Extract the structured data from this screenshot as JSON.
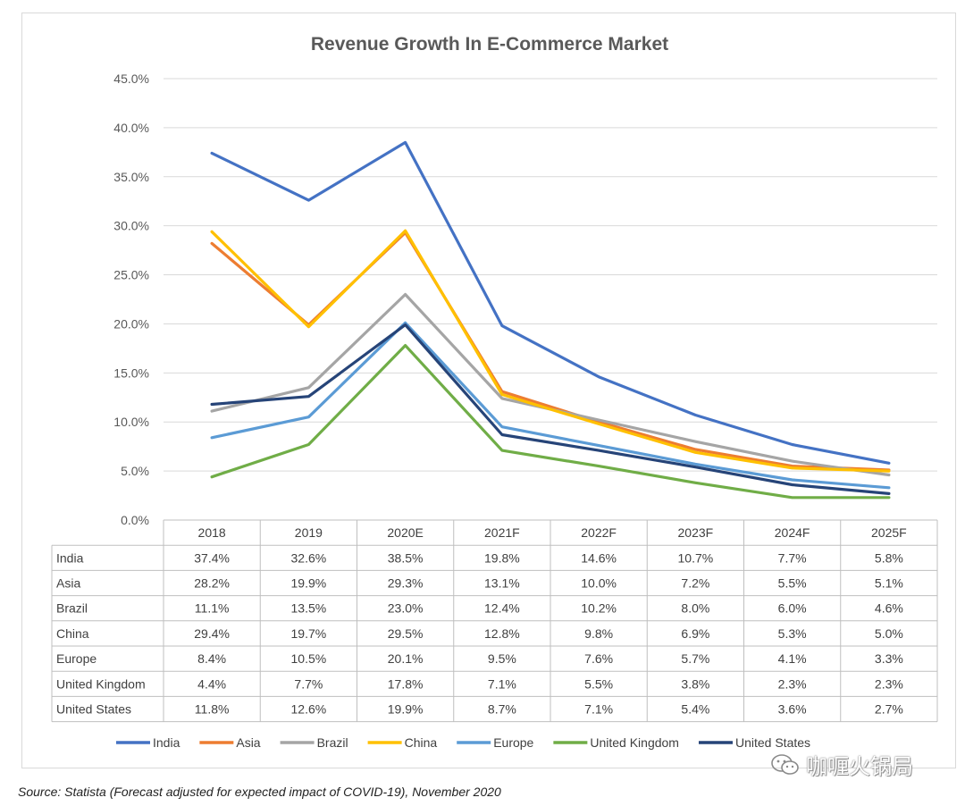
{
  "chart_data": {
    "type": "line",
    "title": "Revenue Growth In E-Commerce Market",
    "categories": [
      "2018",
      "2019",
      "2020E",
      "2021F",
      "2022F",
      "2023F",
      "2024F",
      "2025F"
    ],
    "y_ticks": [
      "45.0%",
      "40.0%",
      "35.0%",
      "30.0%",
      "25.0%",
      "20.0%",
      "15.0%",
      "10.0%",
      "5.0%",
      "0.0%"
    ],
    "ylim": [
      0,
      45
    ],
    "grid": true,
    "legend_position": "bottom",
    "series": [
      {
        "name": "India",
        "color": "#4472C4",
        "values": [
          37.4,
          32.6,
          38.5,
          19.8,
          14.6,
          10.7,
          7.7,
          5.8
        ],
        "labels": [
          "37.4%",
          "32.6%",
          "38.5%",
          "19.8%",
          "14.6%",
          "10.7%",
          "7.7%",
          "5.8%"
        ]
      },
      {
        "name": "Asia",
        "color": "#ED7D31",
        "values": [
          28.2,
          19.9,
          29.3,
          13.1,
          10.0,
          7.2,
          5.5,
          5.1
        ],
        "labels": [
          "28.2%",
          "19.9%",
          "29.3%",
          "13.1%",
          "10.0%",
          "7.2%",
          "5.5%",
          "5.1%"
        ]
      },
      {
        "name": "Brazil",
        "color": "#A5A5A5",
        "values": [
          11.1,
          13.5,
          23.0,
          12.4,
          10.2,
          8.0,
          6.0,
          4.6
        ],
        "labels": [
          "11.1%",
          "13.5%",
          "23.0%",
          "12.4%",
          "10.2%",
          "8.0%",
          "6.0%",
          "4.6%"
        ]
      },
      {
        "name": "China",
        "color": "#FFC000",
        "values": [
          29.4,
          19.7,
          29.5,
          12.8,
          9.8,
          6.9,
          5.3,
          5.0
        ],
        "labels": [
          "29.4%",
          "19.7%",
          "29.5%",
          "12.8%",
          "9.8%",
          "6.9%",
          "5.3%",
          "5.0%"
        ]
      },
      {
        "name": "Europe",
        "color": "#5B9BD5",
        "values": [
          8.4,
          10.5,
          20.1,
          9.5,
          7.6,
          5.7,
          4.1,
          3.3
        ],
        "labels": [
          "8.4%",
          "10.5%",
          "20.1%",
          "9.5%",
          "7.6%",
          "5.7%",
          "4.1%",
          "3.3%"
        ]
      },
      {
        "name": "United Kingdom",
        "color": "#70AD47",
        "values": [
          4.4,
          7.7,
          17.8,
          7.1,
          5.5,
          3.8,
          2.3,
          2.3
        ],
        "labels": [
          "4.4%",
          "7.7%",
          "17.8%",
          "7.1%",
          "5.5%",
          "3.8%",
          "2.3%",
          "2.3%"
        ]
      },
      {
        "name": "United States",
        "color": "#264478",
        "values": [
          11.8,
          12.6,
          19.9,
          8.7,
          7.1,
          5.4,
          3.6,
          2.7
        ],
        "labels": [
          "11.8%",
          "12.6%",
          "19.9%",
          "8.7%",
          "7.1%",
          "5.4%",
          "3.6%",
          "2.7%"
        ]
      }
    ]
  },
  "source_note": "Source: Statista (Forecast adjusted for expected impact of COVID-19), November 2020",
  "watermark": {
    "text": "咖喱火锅局",
    "icon": "wechat-icon"
  }
}
